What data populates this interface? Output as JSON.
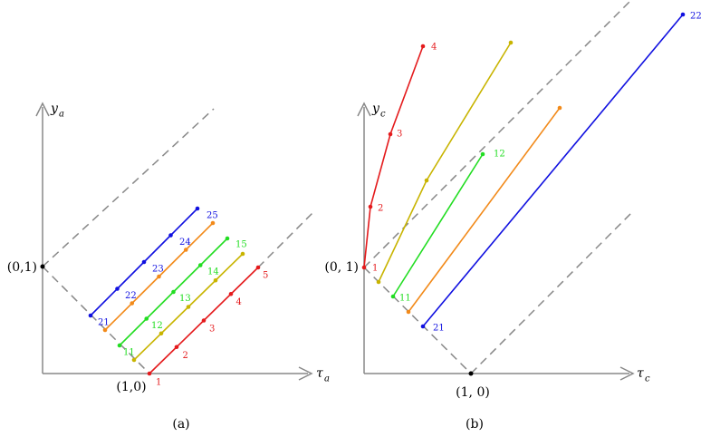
{
  "panels": [
    {
      "caption": "(a)",
      "y_axis": {
        "symbol": "y",
        "subscript": "a"
      },
      "x_axis": {
        "symbol": "τ",
        "subscript": "a"
      },
      "corner_labels": [
        "(0,1)",
        "(1,0)"
      ],
      "point_labels": {
        "red": [
          "1",
          "2",
          "3",
          "4",
          "5"
        ],
        "green": [
          "11",
          "12",
          "13",
          "14",
          "15"
        ],
        "blue": [
          "21",
          "22",
          "23",
          "24",
          "25"
        ]
      }
    },
    {
      "caption": "(b)",
      "y_axis": {
        "symbol": "y",
        "subscript": "c"
      },
      "x_axis": {
        "symbol": "τ",
        "subscript": "c"
      },
      "corner_labels": [
        "(0, 1)",
        "(1, 0)"
      ],
      "point_labels": {
        "red": [
          "1",
          "2",
          "3",
          "4"
        ],
        "green": [
          "11",
          "12"
        ],
        "blue": [
          "21",
          "22"
        ]
      }
    }
  ]
}
